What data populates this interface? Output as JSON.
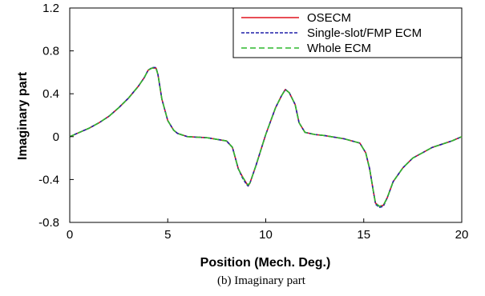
{
  "chart_data": {
    "type": "line",
    "xlabel": "Position (Mech. Deg.)",
    "ylabel": "Imaginary part",
    "caption": "(b) Imaginary part",
    "xlim": [
      0,
      20
    ],
    "ylim": [
      -0.8,
      1.2
    ],
    "x_ticks": [
      0,
      5,
      10,
      15,
      20
    ],
    "y_ticks": [
      -0.8,
      -0.4,
      0,
      0.4,
      0.8,
      1.2
    ],
    "x_tick_labels": [
      "0",
      "5",
      "10",
      "15",
      "20"
    ],
    "y_tick_labels": [
      "-0.8",
      "-0.4",
      "0",
      "0.4",
      "0.8",
      "1.2"
    ],
    "grid": false,
    "legend_position": "top-right",
    "x": [
      0,
      0.5,
      1,
      1.5,
      2,
      2.5,
      3,
      3.5,
      3.8,
      4.0,
      4.2,
      4.4,
      4.5,
      4.7,
      5.0,
      5.3,
      5.5,
      6.0,
      7.0,
      8.0,
      8.3,
      8.6,
      8.8,
      9.0,
      9.1,
      9.2,
      9.5,
      10.0,
      10.5,
      10.8,
      11.0,
      11.2,
      11.5,
      11.7,
      12.0,
      12.5,
      13.0,
      14.0,
      14.8,
      15.1,
      15.3,
      15.5,
      15.6,
      15.8,
      16.0,
      16.2,
      16.5,
      17.0,
      17.5,
      18.0,
      18.5,
      19.0,
      19.5,
      20.0
    ],
    "series": [
      {
        "name": "OSECM",
        "color": "#e0141e",
        "dash": "solid",
        "values": [
          0.0,
          0.04,
          0.08,
          0.13,
          0.19,
          0.27,
          0.36,
          0.47,
          0.55,
          0.62,
          0.64,
          0.64,
          0.58,
          0.35,
          0.15,
          0.06,
          0.03,
          0.0,
          -0.01,
          -0.04,
          -0.1,
          -0.3,
          -0.37,
          -0.43,
          -0.46,
          -0.43,
          -0.27,
          0.02,
          0.27,
          0.38,
          0.44,
          0.41,
          0.3,
          0.13,
          0.04,
          0.02,
          0.01,
          -0.02,
          -0.06,
          -0.15,
          -0.3,
          -0.52,
          -0.62,
          -0.65,
          -0.64,
          -0.57,
          -0.42,
          -0.29,
          -0.2,
          -0.15,
          -0.1,
          -0.07,
          -0.04,
          0.0
        ]
      },
      {
        "name": "Single-slot/FMP ECM",
        "color": "#1f1fa8",
        "dash": "4,2",
        "values": [
          0.0,
          0.04,
          0.08,
          0.13,
          0.19,
          0.27,
          0.36,
          0.47,
          0.55,
          0.62,
          0.645,
          0.645,
          0.58,
          0.35,
          0.15,
          0.06,
          0.03,
          0.0,
          -0.01,
          -0.04,
          -0.1,
          -0.3,
          -0.38,
          -0.44,
          -0.46,
          -0.43,
          -0.27,
          0.02,
          0.27,
          0.38,
          0.44,
          0.41,
          0.3,
          0.13,
          0.04,
          0.02,
          0.01,
          -0.02,
          -0.06,
          -0.15,
          -0.3,
          -0.52,
          -0.63,
          -0.66,
          -0.65,
          -0.57,
          -0.42,
          -0.29,
          -0.2,
          -0.15,
          -0.1,
          -0.07,
          -0.04,
          0.0
        ]
      },
      {
        "name": "Whole ECM",
        "color": "#2db82d",
        "dash": "7,4",
        "values": [
          0.0,
          0.04,
          0.08,
          0.13,
          0.19,
          0.27,
          0.36,
          0.47,
          0.55,
          0.62,
          0.64,
          0.64,
          0.58,
          0.35,
          0.15,
          0.06,
          0.03,
          0.0,
          -0.01,
          -0.04,
          -0.1,
          -0.3,
          -0.37,
          -0.43,
          -0.45,
          -0.43,
          -0.27,
          0.02,
          0.27,
          0.38,
          0.44,
          0.41,
          0.3,
          0.13,
          0.04,
          0.02,
          0.01,
          -0.02,
          -0.06,
          -0.15,
          -0.3,
          -0.52,
          -0.62,
          -0.65,
          -0.64,
          -0.57,
          -0.42,
          -0.29,
          -0.2,
          -0.15,
          -0.1,
          -0.07,
          -0.04,
          0.0
        ]
      }
    ]
  }
}
